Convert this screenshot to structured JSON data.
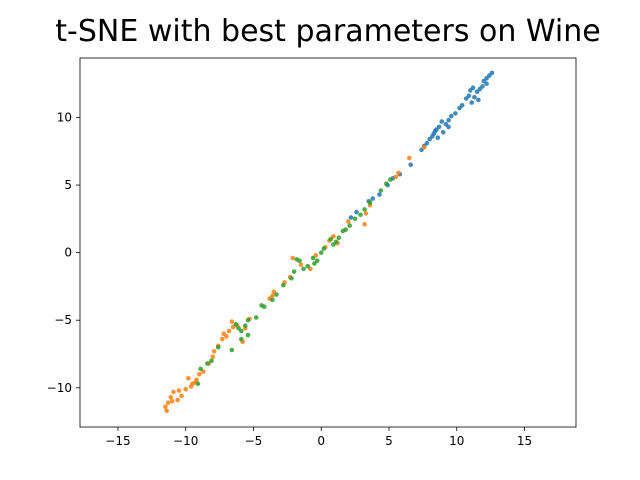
{
  "chart_data": {
    "type": "scatter",
    "title": "t-SNE with best parameters on Wine",
    "xlabel": "",
    "ylabel": "",
    "xlim": [
      -17.8,
      18.8
    ],
    "ylim": [
      -12.9,
      14.4
    ],
    "xticks": [
      -15,
      -10,
      -5,
      0,
      5,
      10,
      15
    ],
    "yticks": [
      -10,
      -5,
      0,
      5,
      10
    ],
    "grid": false,
    "legend": "none",
    "series": [
      {
        "color": "#1f77b4",
        "points": [
          [
            12.6,
            13.3
          ],
          [
            12.4,
            13.1
          ],
          [
            12.2,
            12.9
          ],
          [
            12.0,
            12.7
          ],
          [
            12.2,
            12.5
          ],
          [
            11.9,
            12.3
          ],
          [
            11.7,
            12.1
          ],
          [
            11.5,
            11.9
          ],
          [
            11.2,
            12.2
          ],
          [
            11.0,
            12.0
          ],
          [
            10.9,
            11.6
          ],
          [
            10.7,
            11.4
          ],
          [
            11.3,
            11.5
          ],
          [
            11.6,
            11.3
          ],
          [
            11.1,
            11.1
          ],
          [
            10.4,
            10.9
          ],
          [
            10.2,
            10.7
          ],
          [
            9.9,
            10.3
          ],
          [
            9.6,
            10.1
          ],
          [
            9.4,
            9.8
          ],
          [
            9.2,
            9.5
          ],
          [
            8.9,
            9.7
          ],
          [
            8.7,
            9.3
          ],
          [
            8.5,
            9.1
          ],
          [
            8.3,
            8.8
          ],
          [
            8.2,
            8.6
          ],
          [
            8.0,
            8.4
          ],
          [
            8.6,
            8.5
          ],
          [
            9.0,
            8.9
          ],
          [
            9.4,
            9.3
          ],
          [
            8.4,
            9.0
          ],
          [
            7.8,
            8.1
          ],
          [
            7.6,
            7.9
          ],
          [
            7.4,
            7.6
          ],
          [
            6.6,
            6.5
          ],
          [
            5.8,
            5.8
          ],
          [
            5.3,
            5.5
          ],
          [
            4.9,
            5.0
          ],
          [
            4.3,
            4.3
          ],
          [
            3.8,
            4.0
          ],
          [
            3.5,
            3.8
          ],
          [
            2.6,
            3.0
          ],
          [
            2.2,
            2.6
          ]
        ]
      },
      {
        "color": "#ff7f0e",
        "points": [
          [
            7.6,
            7.8
          ],
          [
            6.5,
            7.0
          ],
          [
            5.7,
            5.9
          ],
          [
            5.5,
            5.6
          ],
          [
            3.6,
            3.5
          ],
          [
            3.3,
            2.9
          ],
          [
            3.2,
            2.1
          ],
          [
            2.0,
            2.3
          ],
          [
            0.9,
            1.2
          ],
          [
            0.6,
            0.9
          ],
          [
            1.2,
            0.7
          ],
          [
            0.3,
            0.4
          ],
          [
            -0.4,
            -0.2
          ],
          [
            -0.8,
            -1.2
          ],
          [
            -1.5,
            -0.9
          ],
          [
            -2.1,
            -0.4
          ],
          [
            -2.3,
            -1.8
          ],
          [
            -2.7,
            -2.2
          ],
          [
            -3.5,
            -2.9
          ],
          [
            -3.8,
            -3.4
          ],
          [
            -5.3,
            -4.9
          ],
          [
            -5.6,
            -5.6
          ],
          [
            -5.8,
            -6.6
          ],
          [
            -6.2,
            -5.4
          ],
          [
            -6.6,
            -5.1
          ],
          [
            -6.8,
            -5.8
          ],
          [
            -7.0,
            -6.2
          ],
          [
            -7.3,
            -6.4
          ],
          [
            -7.6,
            -6.9
          ],
          [
            -7.9,
            -7.3
          ],
          [
            -8.0,
            -7.7
          ],
          [
            -8.3,
            -8.2
          ],
          [
            -8.7,
            -8.8
          ],
          [
            -9.0,
            -9.0
          ],
          [
            -9.2,
            -9.4
          ],
          [
            -9.5,
            -9.7
          ],
          [
            -9.8,
            -9.3
          ],
          [
            -10.0,
            -10.1
          ],
          [
            -10.3,
            -10.6
          ],
          [
            -10.6,
            -10.9
          ],
          [
            -10.9,
            -10.3
          ],
          [
            -11.1,
            -10.7
          ],
          [
            -11.3,
            -11.1
          ],
          [
            -11.5,
            -11.4
          ],
          [
            -11.4,
            -11.7
          ],
          [
            -11.0,
            -11.0
          ],
          [
            -10.5,
            -10.2
          ],
          [
            -9.6,
            -9.9
          ],
          [
            -9.3,
            -9.6
          ],
          [
            -7.2,
            -6.0
          ],
          [
            -6.5,
            -5.5
          ],
          [
            -3.6,
            -3.2
          ]
        ]
      },
      {
        "color": "#2ca02c",
        "points": [
          [
            5.1,
            5.4
          ],
          [
            4.8,
            5.1
          ],
          [
            4.4,
            4.6
          ],
          [
            3.2,
            3.2
          ],
          [
            2.9,
            2.8
          ],
          [
            2.5,
            2.5
          ],
          [
            2.1,
            2.0
          ],
          [
            1.6,
            1.6
          ],
          [
            1.3,
            1.1
          ],
          [
            1.1,
            0.8
          ],
          [
            0.7,
            1.0
          ],
          [
            0.2,
            0.3
          ],
          [
            0.0,
            0.0
          ],
          [
            -0.3,
            -0.6
          ],
          [
            -0.5,
            -0.8
          ],
          [
            -1.0,
            -1.0
          ],
          [
            -1.3,
            -1.2
          ],
          [
            -1.6,
            -0.6
          ],
          [
            -1.8,
            -0.5
          ],
          [
            -2.2,
            -1.9
          ],
          [
            -2.8,
            -2.4
          ],
          [
            -3.3,
            -3.1
          ],
          [
            -3.6,
            -3.5
          ],
          [
            -4.2,
            -4.0
          ],
          [
            -4.4,
            -3.9
          ],
          [
            -4.8,
            -4.8
          ],
          [
            -5.4,
            -5.0
          ],
          [
            -5.6,
            -5.4
          ],
          [
            -5.9,
            -5.8
          ],
          [
            -6.1,
            -5.6
          ],
          [
            -6.3,
            -5.3
          ],
          [
            -6.6,
            -7.2
          ],
          [
            -7.6,
            -7.0
          ],
          [
            -8.1,
            -8.0
          ],
          [
            -8.4,
            -8.2
          ],
          [
            -8.9,
            -8.6
          ],
          [
            -9.1,
            -9.7
          ],
          [
            -5.4,
            -6.1
          ],
          [
            -5.9,
            -6.4
          ],
          [
            0.9,
            0.6
          ],
          [
            1.8,
            1.7
          ],
          [
            -0.6,
            -0.4
          ],
          [
            -2.0,
            -1.4
          ],
          [
            3.6,
            3.7
          ]
        ]
      }
    ]
  }
}
